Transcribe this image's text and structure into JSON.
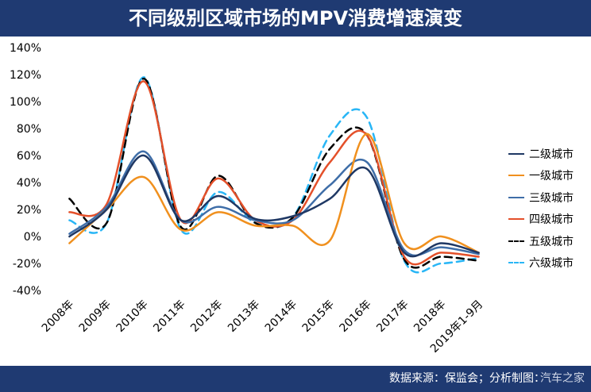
{
  "header": {
    "title": "不同级别区域市场的MPV消费增速演变"
  },
  "footer": {
    "source": "数据来源：保监会；分析制图：",
    "watermark": "汽车之家"
  },
  "chart_data": {
    "type": "line",
    "title": "不同级别区域市场的MPV消费增速演变",
    "xlabel": "",
    "ylabel": "",
    "categories": [
      "2008年",
      "2009年",
      "2010年",
      "2011年",
      "2012年",
      "2013年",
      "2014年",
      "2015年",
      "2016年",
      "2017年",
      "2018年",
      "2019年1-9月"
    ],
    "yticks": [
      "140%",
      "120%",
      "100%",
      "80%",
      "60%",
      "40%",
      "20%",
      "0%",
      "-20%",
      "-40%"
    ],
    "ylim": [
      -40,
      140
    ],
    "legend_position": "right",
    "grid": false,
    "series": [
      {
        "name": "二级城市",
        "color": "#1f3864",
        "dash": "solid",
        "values": [
          0,
          20,
          60,
          12,
          30,
          13,
          15,
          28,
          50,
          -12,
          -5,
          -12
        ]
      },
      {
        "name": "一级城市",
        "color": "#f0901e",
        "dash": "solid",
        "values": [
          -5,
          20,
          44,
          5,
          18,
          8,
          8,
          -3,
          76,
          -5,
          0,
          -12
        ]
      },
      {
        "name": "三级城市",
        "color": "#3f6ea8",
        "dash": "solid",
        "values": [
          2,
          22,
          63,
          12,
          22,
          12,
          12,
          38,
          55,
          -10,
          -8,
          -13
        ]
      },
      {
        "name": "四级城市",
        "color": "#e4502a",
        "dash": "solid",
        "values": [
          18,
          24,
          115,
          12,
          43,
          12,
          12,
          55,
          75,
          -15,
          -12,
          -15
        ]
      },
      {
        "name": "五级城市",
        "color": "#000000",
        "dash": "dashed",
        "values": [
          28,
          10,
          117,
          7,
          45,
          10,
          14,
          65,
          75,
          -17,
          -15,
          -18
        ]
      },
      {
        "name": "六级城市",
        "color": "#29b6f6",
        "dash": "dashed",
        "values": [
          12,
          10,
          118,
          5,
          33,
          10,
          14,
          75,
          88,
          -18,
          -20,
          -16
        ]
      }
    ]
  }
}
